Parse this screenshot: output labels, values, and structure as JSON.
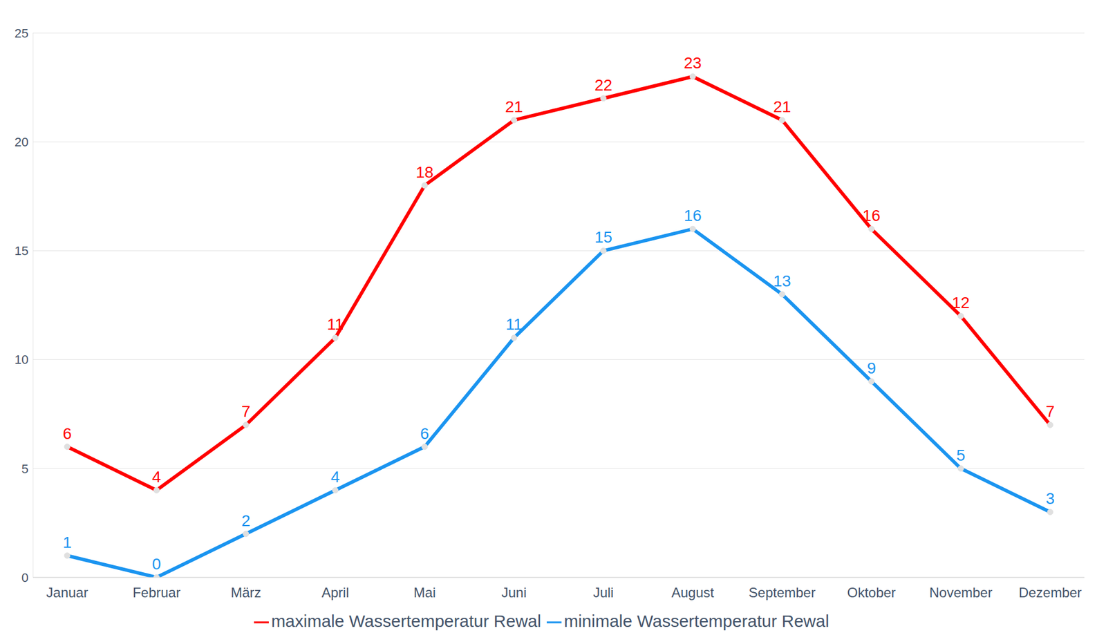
{
  "chart_data": {
    "type": "line",
    "categories": [
      "Januar",
      "Februar",
      "März",
      "April",
      "Mai",
      "Juni",
      "Juli",
      "August",
      "September",
      "Oktober",
      "November",
      "Dezember"
    ],
    "series": [
      {
        "name": "minimale Wassertemperatur Rewal",
        "color": "#1a94f0",
        "marker": "circle",
        "values": [
          1,
          0,
          2,
          4,
          6,
          11,
          15,
          16,
          13,
          9,
          5,
          3
        ]
      },
      {
        "name": "maximale Wassertemperatur Rewal",
        "color": "#ff0000",
        "marker": "circle",
        "values": [
          6,
          4,
          7,
          11,
          18,
          21,
          22,
          23,
          21,
          16,
          12,
          7
        ]
      }
    ],
    "ylim": [
      0,
      25
    ],
    "yticks": [
      0,
      5,
      10,
      15,
      20,
      25
    ],
    "grid": true,
    "data_labels": true,
    "legend": "bottom"
  }
}
